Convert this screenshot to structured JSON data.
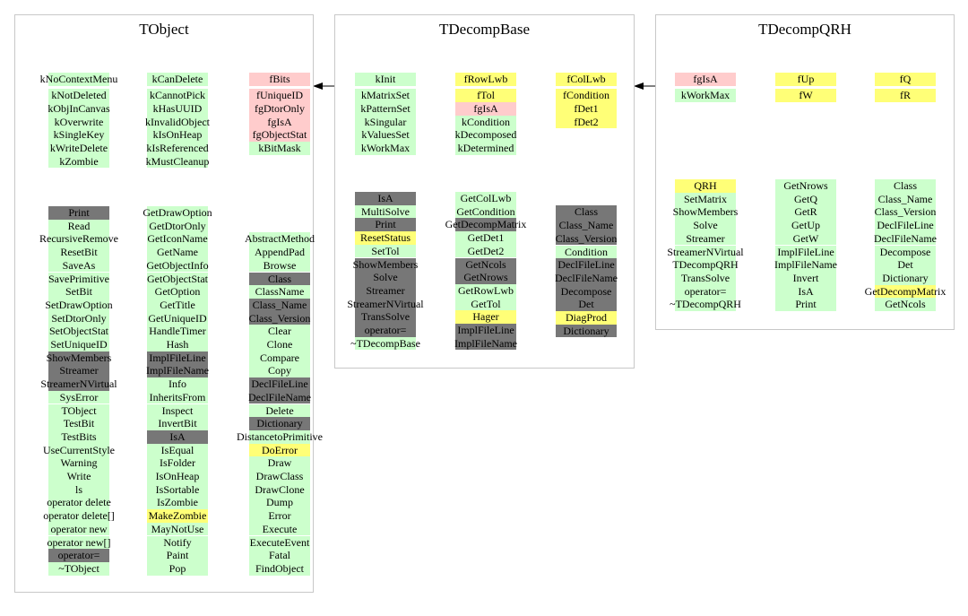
{
  "legend_colors": {
    "g": "#ccffcc",
    "r": "#ffcccc",
    "y": "#ffff77",
    "d": "#777777"
  },
  "classes": [
    {
      "title": "TObject",
      "data_columns": [
        [
          [
            "kNoContextMenu",
            "g"
          ],
          [
            "kNotDeleted",
            "g"
          ],
          [
            "kObjInCanvas",
            "g"
          ],
          [
            "kOverwrite",
            "g"
          ],
          [
            "kSingleKey",
            "g"
          ],
          [
            "kWriteDelete",
            "g"
          ],
          [
            "kZombie",
            "g"
          ]
        ],
        [
          [
            "kCanDelete",
            "g"
          ],
          [
            "kCannotPick",
            "g"
          ],
          [
            "kHasUUID",
            "g"
          ],
          [
            "kInvalidObject",
            "g"
          ],
          [
            "kIsOnHeap",
            "g"
          ],
          [
            "kIsReferenced",
            "g"
          ],
          [
            "kMustCleanup",
            "g"
          ]
        ],
        [
          [
            "fBits",
            "r"
          ],
          [
            "fUniqueID",
            "r"
          ],
          [
            "fgDtorOnly",
            "r"
          ],
          [
            "fgIsA",
            "r"
          ],
          [
            "fgObjectStat",
            "r"
          ],
          [
            "kBitMask",
            "g"
          ]
        ]
      ],
      "method_columns": [
        [
          [
            "Print",
            "d"
          ],
          [
            "Read",
            "g"
          ],
          [
            "RecursiveRemove",
            "g"
          ],
          [
            "ResetBit",
            "g"
          ],
          [
            "SaveAs",
            "g"
          ],
          [
            "SavePrimitive",
            "g"
          ],
          [
            "SetBit",
            "g"
          ],
          [
            "SetDrawOption",
            "g"
          ],
          [
            "SetDtorOnly",
            "g"
          ],
          [
            "SetObjectStat",
            "g"
          ],
          [
            "SetUniqueID",
            "g"
          ],
          [
            "ShowMembers",
            "d"
          ],
          [
            "Streamer",
            "d"
          ],
          [
            "StreamerNVirtual",
            "d"
          ],
          [
            "SysError",
            "g"
          ],
          [
            "TObject",
            "g"
          ],
          [
            "TestBit",
            "g"
          ],
          [
            "TestBits",
            "g"
          ],
          [
            "UseCurrentStyle",
            "g"
          ],
          [
            "Warning",
            "g"
          ],
          [
            "Write",
            "g"
          ],
          [
            "ls",
            "g"
          ],
          [
            "operator delete",
            "g"
          ],
          [
            "operator delete[]",
            "g"
          ],
          [
            "operator new",
            "g"
          ],
          [
            "operator new[]",
            "g"
          ],
          [
            "operator=",
            "d"
          ],
          [
            "~TObject",
            "g"
          ]
        ],
        [
          [
            "GetDrawOption",
            "g"
          ],
          [
            "GetDtorOnly",
            "g"
          ],
          [
            "GetIconName",
            "g"
          ],
          [
            "GetName",
            "g"
          ],
          [
            "GetObjectInfo",
            "g"
          ],
          [
            "GetObjectStat",
            "g"
          ],
          [
            "GetOption",
            "g"
          ],
          [
            "GetTitle",
            "g"
          ],
          [
            "GetUniqueID",
            "g"
          ],
          [
            "HandleTimer",
            "g"
          ],
          [
            "Hash",
            "g"
          ],
          [
            "ImplFileLine",
            "d"
          ],
          [
            "ImplFileName",
            "d"
          ],
          [
            "Info",
            "g"
          ],
          [
            "InheritsFrom",
            "g"
          ],
          [
            "Inspect",
            "g"
          ],
          [
            "InvertBit",
            "g"
          ],
          [
            "IsA",
            "d"
          ],
          [
            "IsEqual",
            "g"
          ],
          [
            "IsFolder",
            "g"
          ],
          [
            "IsOnHeap",
            "g"
          ],
          [
            "IsSortable",
            "g"
          ],
          [
            "IsZombie",
            "g"
          ],
          [
            "MakeZombie",
            "y"
          ],
          [
            "MayNotUse",
            "g"
          ],
          [
            "Notify",
            "g"
          ],
          [
            "Paint",
            "g"
          ],
          [
            "Pop",
            "g"
          ]
        ],
        [
          [
            "AbstractMethod",
            "g"
          ],
          [
            "AppendPad",
            "g"
          ],
          [
            "Browse",
            "g"
          ],
          [
            "Class",
            "d"
          ],
          [
            "ClassName",
            "g"
          ],
          [
            "Class_Name",
            "d"
          ],
          [
            "Class_Version",
            "d"
          ],
          [
            "Clear",
            "g"
          ],
          [
            "Clone",
            "g"
          ],
          [
            "Compare",
            "g"
          ],
          [
            "Copy",
            "g"
          ],
          [
            "DeclFileLine",
            "d"
          ],
          [
            "DeclFileName",
            "d"
          ],
          [
            "Delete",
            "g"
          ],
          [
            "Dictionary",
            "d"
          ],
          [
            "DistancetoPrimitive",
            "g"
          ],
          [
            "DoError",
            "y"
          ],
          [
            "Draw",
            "g"
          ],
          [
            "DrawClass",
            "g"
          ],
          [
            "DrawClone",
            "g"
          ],
          [
            "Dump",
            "g"
          ],
          [
            "Error",
            "g"
          ],
          [
            "Execute",
            "g"
          ],
          [
            "ExecuteEvent",
            "g"
          ],
          [
            "Fatal",
            "g"
          ],
          [
            "FindObject",
            "g"
          ]
        ]
      ]
    },
    {
      "title": "TDecompBase",
      "data_columns": [
        [
          [
            "kInit",
            "g"
          ],
          [
            "kMatrixSet",
            "g"
          ],
          [
            "kPatternSet",
            "g"
          ],
          [
            "kSingular",
            "g"
          ],
          [
            "kValuesSet",
            "g"
          ],
          [
            "kWorkMax",
            "g"
          ]
        ],
        [
          [
            "fRowLwb",
            "y"
          ],
          [
            "fTol",
            "y"
          ],
          [
            "fgIsA",
            "r"
          ],
          [
            "kCondition",
            "g"
          ],
          [
            "kDecomposed",
            "g"
          ],
          [
            "kDetermined",
            "g"
          ]
        ],
        [
          [
            "fColLwb",
            "y"
          ],
          [
            "fCondition",
            "y"
          ],
          [
            "fDet1",
            "y"
          ],
          [
            "fDet2",
            "y"
          ]
        ]
      ],
      "method_columns": [
        [
          [
            "IsA",
            "d"
          ],
          [
            "MultiSolve",
            "g"
          ],
          [
            "Print",
            "d"
          ],
          [
            "ResetStatus",
            "y"
          ],
          [
            "SetTol",
            "g"
          ],
          [
            "ShowMembers",
            "d"
          ],
          [
            "Solve",
            "d"
          ],
          [
            "Streamer",
            "d"
          ],
          [
            "StreamerNVirtual",
            "d"
          ],
          [
            "TransSolve",
            "d"
          ],
          [
            "operator=",
            "d"
          ],
          [
            "~TDecompBase",
            "g"
          ]
        ],
        [
          [
            "GetColLwb",
            "g"
          ],
          [
            "GetCondition",
            "g"
          ],
          [
            "GetDecompMatrix",
            "d"
          ],
          [
            "GetDet1",
            "g"
          ],
          [
            "GetDet2",
            "g"
          ],
          [
            "GetNcols",
            "d"
          ],
          [
            "GetNrows",
            "d"
          ],
          [
            "GetRowLwb",
            "g"
          ],
          [
            "GetTol",
            "g"
          ],
          [
            "Hager",
            "y"
          ],
          [
            "ImplFileLine",
            "d"
          ],
          [
            "ImplFileName",
            "d"
          ]
        ],
        [
          [
            "Class",
            "d"
          ],
          [
            "Class_Name",
            "d"
          ],
          [
            "Class_Version",
            "d"
          ],
          [
            "Condition",
            "g"
          ],
          [
            "DeclFileLine",
            "d"
          ],
          [
            "DeclFileName",
            "d"
          ],
          [
            "Decompose",
            "d"
          ],
          [
            "Det",
            "d"
          ],
          [
            "DiagProd",
            "y"
          ],
          [
            "Dictionary",
            "d"
          ]
        ]
      ]
    },
    {
      "title": "TDecompQRH",
      "data_columns": [
        [
          [
            "fgIsA",
            "r"
          ],
          [
            "kWorkMax",
            "g"
          ]
        ],
        [
          [
            "fUp",
            "y"
          ],
          [
            "fW",
            "y"
          ]
        ],
        [
          [
            "fQ",
            "y"
          ],
          [
            "fR",
            "y"
          ]
        ]
      ],
      "method_columns": [
        [
          [
            "QRH",
            "y"
          ],
          [
            "SetMatrix",
            "g"
          ],
          [
            "ShowMembers",
            "g"
          ],
          [
            "Solve",
            "g"
          ],
          [
            "Streamer",
            "g"
          ],
          [
            "StreamerNVirtual",
            "g"
          ],
          [
            "TDecompQRH",
            "g"
          ],
          [
            "TransSolve",
            "g"
          ],
          [
            "operator=",
            "g"
          ],
          [
            "~TDecompQRH",
            "g"
          ]
        ],
        [
          [
            "GetNrows",
            "g"
          ],
          [
            "GetQ",
            "g"
          ],
          [
            "GetR",
            "g"
          ],
          [
            "GetUp",
            "g"
          ],
          [
            "GetW",
            "g"
          ],
          [
            "ImplFileLine",
            "g"
          ],
          [
            "ImplFileName",
            "g"
          ],
          [
            "Invert",
            "g"
          ],
          [
            "IsA",
            "g"
          ],
          [
            "Print",
            "g"
          ]
        ],
        [
          [
            "Class",
            "g"
          ],
          [
            "Class_Name",
            "g"
          ],
          [
            "Class_Version",
            "g"
          ],
          [
            "DeclFileLine",
            "g"
          ],
          [
            "DeclFileName",
            "g"
          ],
          [
            "Decompose",
            "g"
          ],
          [
            "Det",
            "g"
          ],
          [
            "Dictionary",
            "g"
          ],
          [
            "GetDecompMatrix",
            "y"
          ],
          [
            "GetNcols",
            "g"
          ]
        ]
      ]
    }
  ]
}
